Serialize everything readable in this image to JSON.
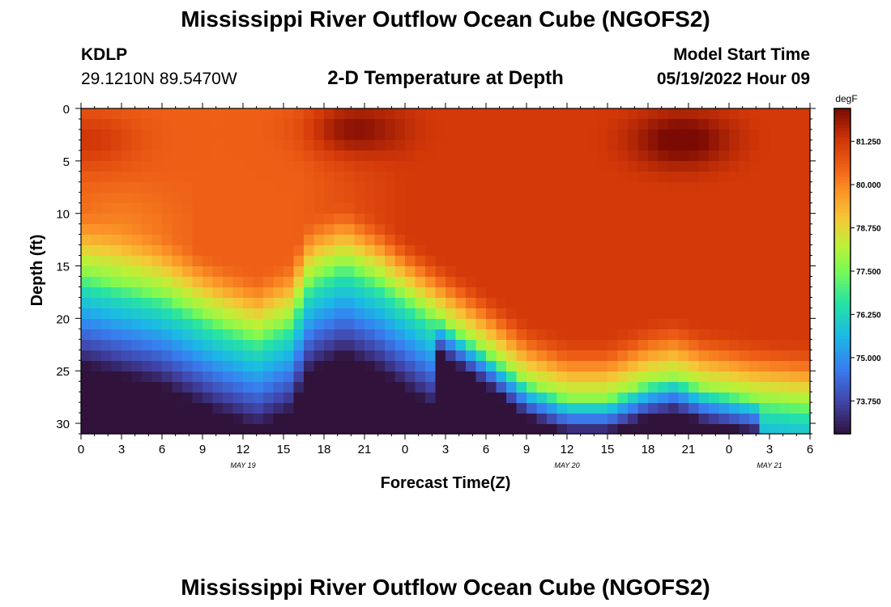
{
  "page_title": "Mississippi River Outflow Ocean Cube (NGOFS2)",
  "station": {
    "id": "KDLP",
    "coords": "29.1210N  89.5470W"
  },
  "model_start": {
    "label": "Model Start Time",
    "value": "05/19/2022 Hour 09"
  },
  "bottom_title": "Mississippi River Outflow Ocean Cube (NGOFS2)",
  "chart_data": {
    "type": "heatmap",
    "title": "2-D Temperature at Depth",
    "xlabel": "Forecast Time(Z)",
    "ylabel": "Depth (ft)",
    "x_range_hours": [
      0,
      54
    ],
    "y_range_ft": [
      0,
      31
    ],
    "x_ticks": [
      "0",
      "3",
      "6",
      "9",
      "12",
      "15",
      "18",
      "21",
      "0",
      "3",
      "6",
      "9",
      "12",
      "15",
      "18",
      "21",
      "0",
      "3",
      "6"
    ],
    "y_ticks": [
      0,
      5,
      10,
      15,
      20,
      25,
      30
    ],
    "date_labels": [
      {
        "text": "MAY 19",
        "hour": 12
      },
      {
        "text": "MAY 20",
        "hour": 36
      },
      {
        "text": "MAY 21",
        "hour": 51
      }
    ],
    "colorbar": {
      "unit": "degF",
      "range": [
        72.8,
        82.2
      ],
      "ticks": [
        "81.250",
        "80.000",
        "78.750",
        "77.500",
        "76.250",
        "75.000",
        "73.750"
      ],
      "tick_values": [
        81.25,
        80.0,
        78.75,
        77.5,
        76.25,
        75.0,
        73.75
      ]
    },
    "thermocline_ft": [
      {
        "hour": 0,
        "depth": 15.5
      },
      {
        "hour": 6,
        "depth": 17.5
      },
      {
        "hour": 10,
        "depth": 20
      },
      {
        "hour": 13,
        "depth": 21.5
      },
      {
        "hour": 15.5,
        "depth": 20
      },
      {
        "hour": 17,
        "depth": 16
      },
      {
        "hour": 19.5,
        "depth": 14.5
      },
      {
        "hour": 22,
        "depth": 16
      },
      {
        "hour": 26,
        "depth": 19.5
      },
      {
        "hour": 30,
        "depth": 23
      },
      {
        "hour": 33,
        "depth": 26
      },
      {
        "hour": 36,
        "depth": 27.5
      },
      {
        "hour": 39,
        "depth": 27.5
      },
      {
        "hour": 42,
        "depth": 26
      },
      {
        "hour": 44,
        "depth": 25.5
      },
      {
        "hour": 46,
        "depth": 26.5
      },
      {
        "hour": 50,
        "depth": 27.5
      },
      {
        "hour": 54,
        "depth": 28
      }
    ],
    "warm_cores": [
      {
        "hour": 0.5,
        "depth": 3,
        "temp": 81.8
      },
      {
        "hour": 20,
        "depth": 2,
        "temp": 82.1
      },
      {
        "hour": 44.5,
        "depth": 3,
        "temp": 82.1
      }
    ]
  }
}
